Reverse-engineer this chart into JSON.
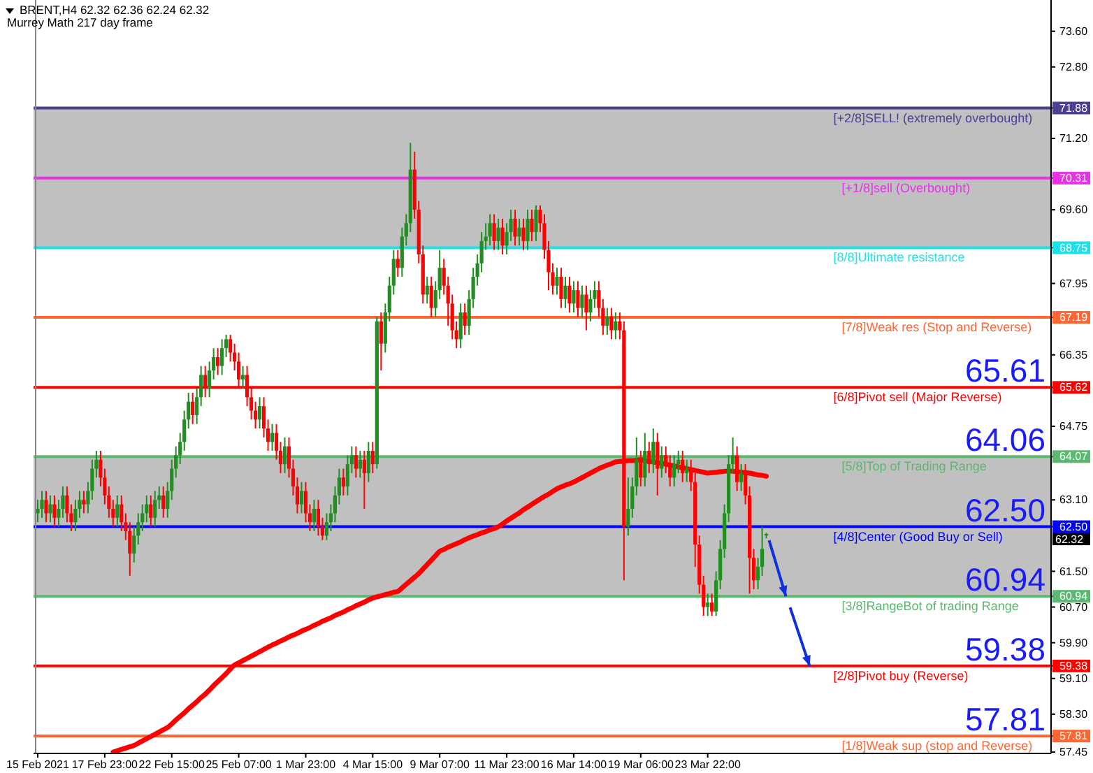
{
  "chart_data": {
    "type": "candlestick",
    "title": "BRENT,H4  62.32 62.36 62.24 62.32",
    "subtitle": "Murrey Math 217 day frame",
    "categories": [
      "15 Feb 2021",
      null,
      null,
      null,
      null,
      null,
      null,
      null,
      null,
      null,
      null,
      null,
      null,
      null,
      null,
      null,
      "17 Feb 23:00",
      null,
      null,
      null,
      null,
      null,
      null,
      null,
      null,
      null,
      null,
      null,
      null,
      null,
      null,
      null,
      "22 Feb 15:00",
      null,
      null,
      null,
      null,
      null,
      null,
      null,
      null,
      null,
      null,
      null,
      null,
      null,
      null,
      null,
      "25 Feb 07:00",
      null,
      null,
      null,
      null,
      null,
      null,
      null,
      null,
      null,
      null,
      null,
      null,
      null,
      null,
      null,
      "1 Mar 23:00",
      null,
      null,
      null,
      null,
      null,
      null,
      null,
      null,
      null,
      null,
      null,
      null,
      null,
      null,
      null,
      "4 Mar 15:00",
      null,
      null,
      null,
      null,
      null,
      null,
      null,
      null,
      null,
      null,
      null,
      null,
      null,
      null,
      null,
      "9 Mar 07:00",
      null,
      null,
      null,
      null,
      null,
      null,
      null,
      null,
      null,
      null,
      null,
      null,
      null,
      null,
      null,
      "11 Mar 23:00",
      null,
      null,
      null,
      null,
      null,
      null,
      null,
      null,
      null,
      null,
      null,
      null,
      null,
      null,
      null,
      "16 Mar 14:00",
      null,
      null,
      null,
      null,
      null,
      null,
      null,
      null,
      null,
      null,
      null,
      null,
      null,
      null,
      null,
      "19 Mar 06:00",
      null,
      null,
      null,
      null,
      null,
      null,
      null,
      null,
      null,
      null,
      null,
      null,
      null,
      null,
      null,
      "23 Mar 22:00",
      null,
      null,
      null,
      null,
      null,
      null,
      null,
      null,
      null,
      null,
      null,
      null,
      null,
      null
    ],
    "ohlc": [
      [
        62.8,
        63.1,
        62.6,
        62.9
      ],
      [
        62.9,
        63.3,
        62.7,
        63.1
      ],
      [
        63.1,
        63.3,
        62.6,
        62.8
      ],
      [
        62.8,
        63.2,
        62.6,
        63.0
      ],
      [
        63.0,
        63.2,
        62.5,
        62.7
      ],
      [
        62.7,
        63.1,
        62.5,
        62.9
      ],
      [
        62.9,
        63.4,
        62.7,
        63.2
      ],
      [
        63.2,
        63.4,
        62.6,
        62.8
      ],
      [
        62.8,
        63.0,
        62.4,
        62.6
      ],
      [
        62.6,
        63.1,
        62.4,
        62.9
      ],
      [
        62.9,
        63.3,
        62.7,
        63.1
      ],
      [
        63.1,
        63.3,
        62.8,
        63.0
      ],
      [
        63.0,
        63.5,
        62.8,
        63.3
      ],
      [
        63.3,
        64.0,
        63.1,
        63.8
      ],
      [
        63.8,
        64.2,
        63.6,
        64.0
      ],
      [
        64.0,
        64.2,
        63.4,
        63.6
      ],
      [
        63.6,
        63.8,
        63.0,
        63.2
      ],
      [
        63.2,
        63.4,
        62.7,
        62.9
      ],
      [
        62.9,
        63.1,
        62.5,
        62.7
      ],
      [
        62.7,
        63.2,
        62.5,
        63.0
      ],
      [
        63.0,
        63.2,
        62.4,
        62.6
      ],
      [
        62.6,
        62.8,
        62.2,
        62.4
      ],
      [
        62.4,
        62.6,
        61.4,
        61.9
      ],
      [
        61.9,
        62.5,
        61.7,
        62.3
      ],
      [
        62.3,
        62.8,
        62.1,
        62.6
      ],
      [
        62.6,
        63.0,
        62.4,
        62.8
      ],
      [
        62.8,
        63.2,
        62.6,
        63.0
      ],
      [
        63.0,
        63.2,
        62.5,
        62.7
      ],
      [
        62.7,
        63.3,
        62.5,
        63.1
      ],
      [
        63.1,
        63.4,
        62.9,
        63.2
      ],
      [
        63.2,
        63.4,
        62.7,
        62.9
      ],
      [
        62.9,
        63.5,
        62.7,
        63.3
      ],
      [
        63.3,
        64.0,
        63.1,
        63.8
      ],
      [
        63.8,
        64.3,
        63.6,
        64.1
      ],
      [
        64.1,
        64.6,
        63.9,
        64.4
      ],
      [
        64.4,
        65.1,
        64.2,
        64.9
      ],
      [
        64.9,
        65.5,
        64.7,
        65.3
      ],
      [
        65.3,
        65.5,
        64.8,
        65.0
      ],
      [
        65.0,
        65.6,
        64.8,
        65.4
      ],
      [
        65.4,
        66.1,
        65.2,
        65.9
      ],
      [
        65.9,
        66.1,
        65.4,
        65.6
      ],
      [
        65.6,
        66.2,
        65.4,
        66.0
      ],
      [
        66.0,
        66.5,
        65.8,
        66.3
      ],
      [
        66.3,
        66.5,
        65.9,
        66.1
      ],
      [
        66.1,
        66.7,
        65.9,
        66.5
      ],
      [
        66.5,
        66.8,
        66.3,
        66.7
      ],
      [
        66.7,
        66.8,
        66.2,
        66.4
      ],
      [
        66.4,
        66.6,
        66.0,
        66.2
      ],
      [
        66.2,
        66.4,
        65.6,
        65.8
      ],
      [
        65.8,
        66.1,
        65.6,
        65.9
      ],
      [
        65.9,
        66.1,
        65.2,
        65.4
      ],
      [
        65.4,
        65.6,
        64.9,
        65.1
      ],
      [
        65.1,
        65.3,
        64.7,
        64.9
      ],
      [
        64.9,
        65.4,
        64.7,
        65.2
      ],
      [
        65.2,
        65.4,
        64.5,
        64.7
      ],
      [
        64.7,
        64.9,
        64.2,
        64.4
      ],
      [
        64.4,
        64.8,
        64.2,
        64.6
      ],
      [
        64.6,
        64.8,
        64.0,
        64.2
      ],
      [
        64.2,
        64.4,
        63.7,
        63.9
      ],
      [
        63.9,
        64.5,
        63.7,
        64.3
      ],
      [
        64.3,
        64.5,
        63.6,
        63.8
      ],
      [
        63.8,
        64.0,
        63.2,
        63.4
      ],
      [
        63.4,
        63.6,
        62.8,
        63.0
      ],
      [
        63.0,
        63.5,
        62.8,
        63.3
      ],
      [
        63.3,
        63.5,
        62.6,
        62.8
      ],
      [
        62.8,
        63.0,
        62.4,
        62.6
      ],
      [
        62.6,
        63.1,
        62.4,
        62.9
      ],
      [
        62.9,
        63.1,
        62.3,
        62.5
      ],
      [
        62.5,
        62.7,
        62.2,
        62.3
      ],
      [
        62.3,
        62.8,
        62.2,
        62.6
      ],
      [
        62.6,
        63.0,
        62.4,
        62.8
      ],
      [
        62.8,
        63.4,
        62.6,
        63.2
      ],
      [
        63.2,
        63.8,
        63.0,
        63.6
      ],
      [
        63.6,
        63.8,
        63.2,
        63.4
      ],
      [
        63.4,
        64.1,
        63.2,
        63.9
      ],
      [
        63.9,
        64.3,
        63.7,
        64.1
      ],
      [
        64.1,
        64.3,
        63.6,
        63.8
      ],
      [
        63.8,
        64.2,
        63.6,
        64.0
      ],
      [
        64.0,
        64.2,
        62.9,
        63.7
      ],
      [
        63.7,
        64.4,
        63.5,
        64.2
      ],
      [
        64.2,
        64.4,
        63.7,
        63.9
      ],
      [
        63.9,
        67.2,
        63.8,
        67.1
      ],
      [
        67.1,
        67.3,
        66.0,
        66.6
      ],
      [
        66.6,
        67.5,
        66.4,
        67.3
      ],
      [
        67.3,
        68.1,
        67.1,
        67.9
      ],
      [
        67.9,
        68.7,
        67.7,
        68.5
      ],
      [
        68.5,
        68.7,
        68.1,
        68.3
      ],
      [
        68.3,
        69.2,
        68.1,
        69.0
      ],
      [
        69.0,
        69.5,
        68.8,
        69.3
      ],
      [
        69.3,
        71.1,
        69.1,
        70.5
      ],
      [
        70.5,
        70.9,
        69.4,
        69.6
      ],
      [
        69.6,
        69.8,
        68.4,
        68.6
      ],
      [
        68.6,
        68.8,
        67.5,
        67.7
      ],
      [
        67.7,
        68.1,
        67.5,
        67.9
      ],
      [
        67.9,
        68.1,
        67.2,
        67.4
      ],
      [
        67.4,
        68.0,
        67.2,
        67.8
      ],
      [
        67.8,
        68.7,
        67.6,
        68.3
      ],
      [
        68.3,
        68.5,
        67.7,
        67.9
      ],
      [
        67.9,
        68.1,
        67.0,
        67.5
      ],
      [
        67.5,
        67.7,
        66.7,
        66.9
      ],
      [
        66.9,
        67.1,
        66.5,
        66.7
      ],
      [
        66.7,
        67.5,
        66.5,
        67.3
      ],
      [
        67.3,
        67.5,
        66.8,
        67.0
      ],
      [
        67.0,
        67.8,
        66.8,
        67.6
      ],
      [
        67.6,
        68.3,
        67.4,
        68.1
      ],
      [
        68.1,
        68.6,
        67.9,
        68.4
      ],
      [
        68.4,
        69.1,
        68.2,
        68.9
      ],
      [
        68.9,
        69.3,
        68.7,
        69.0
      ],
      [
        69.0,
        69.5,
        68.8,
        69.3
      ],
      [
        69.3,
        69.5,
        68.7,
        68.9
      ],
      [
        68.9,
        69.4,
        68.7,
        69.2
      ],
      [
        69.2,
        69.4,
        68.6,
        68.8
      ],
      [
        68.8,
        69.3,
        68.6,
        69.1
      ],
      [
        69.1,
        69.6,
        68.9,
        69.4
      ],
      [
        69.4,
        69.6,
        68.8,
        69.0
      ],
      [
        69.0,
        69.4,
        68.8,
        69.2
      ],
      [
        69.2,
        69.4,
        68.7,
        68.9
      ],
      [
        68.9,
        69.6,
        68.7,
        69.4
      ],
      [
        69.4,
        69.6,
        68.9,
        69.1
      ],
      [
        69.1,
        69.7,
        68.9,
        69.6
      ],
      [
        69.6,
        69.7,
        69.1,
        69.3
      ],
      [
        69.3,
        69.5,
        68.5,
        68.7
      ],
      [
        68.7,
        68.9,
        67.8,
        68.2
      ],
      [
        68.2,
        68.4,
        67.7,
        67.9
      ],
      [
        67.9,
        68.3,
        67.7,
        68.1
      ],
      [
        68.1,
        68.3,
        67.4,
        67.6
      ],
      [
        67.6,
        68.1,
        67.4,
        67.9
      ],
      [
        67.9,
        68.1,
        67.3,
        67.5
      ],
      [
        67.5,
        68.0,
        67.3,
        67.8
      ],
      [
        67.8,
        68.0,
        67.2,
        67.4
      ],
      [
        67.4,
        67.9,
        67.2,
        67.7
      ],
      [
        67.7,
        67.9,
        66.9,
        67.3
      ],
      [
        67.3,
        67.8,
        67.1,
        67.6
      ],
      [
        67.6,
        68.0,
        67.4,
        67.8
      ],
      [
        67.8,
        68.0,
        67.2,
        67.4
      ],
      [
        67.4,
        67.6,
        66.8,
        67.0
      ],
      [
        67.0,
        67.4,
        66.8,
        67.2
      ],
      [
        67.2,
        67.4,
        66.7,
        66.9
      ],
      [
        66.9,
        67.3,
        66.7,
        67.1
      ],
      [
        67.1,
        67.3,
        66.7,
        66.9
      ],
      [
        66.9,
        67.1,
        61.3,
        62.5
      ],
      [
        62.5,
        63.6,
        62.3,
        62.9
      ],
      [
        62.9,
        63.6,
        62.7,
        63.4
      ],
      [
        63.4,
        64.5,
        63.2,
        64.0
      ],
      [
        64.0,
        64.2,
        63.4,
        63.6
      ],
      [
        63.6,
        64.6,
        63.4,
        64.2
      ],
      [
        64.2,
        64.4,
        63.7,
        63.9
      ],
      [
        63.9,
        64.7,
        63.7,
        64.4
      ],
      [
        64.4,
        64.6,
        63.2,
        63.8
      ],
      [
        63.8,
        64.3,
        63.6,
        64.1
      ],
      [
        64.1,
        64.3,
        63.7,
        63.9
      ],
      [
        63.9,
        64.1,
        63.4,
        63.6
      ],
      [
        63.6,
        64.1,
        63.4,
        63.9
      ],
      [
        63.9,
        64.2,
        63.7,
        64.0
      ],
      [
        64.0,
        64.2,
        63.5,
        63.7
      ],
      [
        63.7,
        64.0,
        63.5,
        63.8
      ],
      [
        63.8,
        64.0,
        63.3,
        63.5
      ],
      [
        63.5,
        63.7,
        61.6,
        62.1
      ],
      [
        62.1,
        62.3,
        61.0,
        61.2
      ],
      [
        61.2,
        61.4,
        60.5,
        60.7
      ],
      [
        60.7,
        61.0,
        60.5,
        60.8
      ],
      [
        60.8,
        61.0,
        60.5,
        60.6
      ],
      [
        60.6,
        61.5,
        60.5,
        61.3
      ],
      [
        61.3,
        62.2,
        61.1,
        62.0
      ],
      [
        62.0,
        63.0,
        61.8,
        62.8
      ],
      [
        62.8,
        64.1,
        62.6,
        63.9
      ],
      [
        63.9,
        64.5,
        63.7,
        64.1
      ],
      [
        64.1,
        64.3,
        63.3,
        63.5
      ],
      [
        63.5,
        63.9,
        63.3,
        63.7
      ],
      [
        63.7,
        63.9,
        63.0,
        63.2
      ],
      [
        63.2,
        63.4,
        61.0,
        61.8
      ],
      [
        61.8,
        62.0,
        61.1,
        61.3
      ],
      [
        61.3,
        61.8,
        61.1,
        61.6
      ],
      [
        61.6,
        62.5,
        61.4,
        62.0
      ],
      [
        62.32,
        62.36,
        62.24,
        62.32
      ]
    ],
    "series": [
      {
        "type": "line",
        "color": "#ff0000",
        "values": [
          null,
          null,
          null,
          null,
          null,
          null,
          null,
          null,
          null,
          null,
          null,
          null,
          null,
          null,
          null,
          null,
          null,
          null,
          57.45,
          57.48,
          57.51,
          57.54,
          57.57,
          57.6,
          57.65,
          57.7,
          57.75,
          57.8,
          57.85,
          57.9,
          57.95,
          58.0,
          58.08,
          58.17,
          58.25,
          58.33,
          58.42,
          58.5,
          58.58,
          58.67,
          58.75,
          58.84,
          58.94,
          59.03,
          59.12,
          59.21,
          59.31,
          59.4,
          59.45,
          59.5,
          59.55,
          59.6,
          59.65,
          59.7,
          59.75,
          59.8,
          59.85,
          59.89,
          59.94,
          59.98,
          60.03,
          60.07,
          60.11,
          60.16,
          60.2,
          60.24,
          60.29,
          60.33,
          60.38,
          60.42,
          60.46,
          60.51,
          60.55,
          60.59,
          60.64,
          60.68,
          60.73,
          60.77,
          60.81,
          60.86,
          60.9,
          60.93,
          60.95,
          60.98,
          61.0,
          61.03,
          61.05,
          61.13,
          61.21,
          61.29,
          61.37,
          61.45,
          61.55,
          61.65,
          61.75,
          61.85,
          61.95,
          61.99,
          62.04,
          62.08,
          62.12,
          62.16,
          62.21,
          62.25,
          62.29,
          62.32,
          62.36,
          62.39,
          62.43,
          62.46,
          62.5,
          62.56,
          62.63,
          62.69,
          62.75,
          62.81,
          62.88,
          62.94,
          63.0,
          63.06,
          63.12,
          63.18,
          63.23,
          63.29,
          63.35,
          63.39,
          63.43,
          63.46,
          63.5,
          63.55,
          63.6,
          63.65,
          63.7,
          63.75,
          63.8,
          63.84,
          63.88,
          63.91,
          63.95,
          63.96,
          63.97,
          63.98,
          63.98,
          63.99,
          64.0,
          63.98,
          63.97,
          63.95,
          63.93,
          63.92,
          63.9,
          63.88,
          63.86,
          63.84,
          63.82,
          63.8,
          63.78,
          63.76,
          63.74,
          63.72,
          63.7,
          63.71,
          63.72,
          63.73,
          63.74,
          63.75,
          63.74,
          63.73,
          63.72,
          63.71,
          63.7,
          63.68,
          63.66,
          63.65,
          63.63
        ]
      }
    ],
    "ylim": [
      57.42,
      74.3
    ],
    "yticks": [
      {
        "value": 73.6,
        "label": "73.60"
      },
      {
        "value": 72.8,
        "label": "72.80"
      },
      {
        "value": 71.88,
        "label": "71.88"
      },
      {
        "value": 70.31,
        "label": "70.31"
      },
      {
        "value": 68.75,
        "label": "68.75"
      },
      {
        "value": 67.19,
        "label": "67.19"
      },
      {
        "value": 65.62,
        "label": "65.62"
      },
      {
        "value": 64.07,
        "label": "64.07"
      },
      {
        "value": 62.5,
        "label": "62.50"
      },
      {
        "value": 60.94,
        "label": "60.94"
      },
      {
        "value": 59.38,
        "label": "59.38"
      },
      {
        "value": 57.81,
        "label": "57.81"
      },
      {
        "value": 71.2,
        "label": "71.20"
      },
      {
        "value": 69.6,
        "label": "69.60"
      },
      {
        "value": 67.95,
        "label": "67.95"
      },
      {
        "value": 66.35,
        "label": "66.35"
      },
      {
        "value": 64.75,
        "label": "64.75"
      },
      {
        "value": 63.1,
        "label": "63.10"
      },
      {
        "value": 61.5,
        "label": "61.50"
      },
      {
        "value": 60.7,
        "label": "60.70"
      },
      {
        "value": 59.9,
        "label": "59.90"
      },
      {
        "value": 59.1,
        "label": "59.10"
      },
      {
        "value": 58.3,
        "label": "58.30"
      },
      {
        "value": 57.45,
        "label": "57.45"
      }
    ],
    "bands": [
      {
        "axis": "y",
        "from": 68.75,
        "to": 71.88,
        "color": "#c0c0c0"
      },
      {
        "axis": "y",
        "from": 60.94,
        "to": 64.07,
        "color": "#c0c0c0"
      }
    ],
    "ref_lines": [
      {
        "axis": "y",
        "value": 71.88,
        "label": "[+2/8]SELL! (extremely overbought)",
        "color": "#4b3f8f"
      },
      {
        "axis": "y",
        "value": 70.31,
        "label": "[+1/8]sell (Overbought)",
        "color": "#e633e6"
      },
      {
        "axis": "y",
        "value": 68.75,
        "label": "[8/8]Ultimate resistance",
        "color": "#1fe0e8"
      },
      {
        "axis": "y",
        "value": 67.19,
        "label": "[7/8]Weak res (Stop and Reverse)",
        "color": "#ff6633"
      },
      {
        "axis": "y",
        "value": 65.62,
        "label": "[6/8]Pivot sell (Major Reverse)",
        "color": "#ff0000"
      },
      {
        "axis": "y",
        "value": 64.07,
        "label": "[5/8]Top of Trading Range",
        "color": "#5cb870"
      },
      {
        "axis": "y",
        "value": 62.5,
        "label": "[4/8]Center (Good Buy or Sell)",
        "color": "#0000ff"
      },
      {
        "axis": "y",
        "value": 60.94,
        "label": "[3/8]RangeBot of trading Range",
        "color": "#5cb870"
      },
      {
        "axis": "y",
        "value": 59.38,
        "label": "[2/8]Pivot buy (Reverse)",
        "color": "#ff0000"
      },
      {
        "axis": "y",
        "value": 57.81,
        "label": "[1/8]Weak sup (stop and Reverse)",
        "color": "#ff6633"
      }
    ],
    "annotations": [
      "65.61",
      "64.06",
      "62.50",
      "60.94",
      "59.38",
      "57.81",
      "62.32"
    ]
  }
}
